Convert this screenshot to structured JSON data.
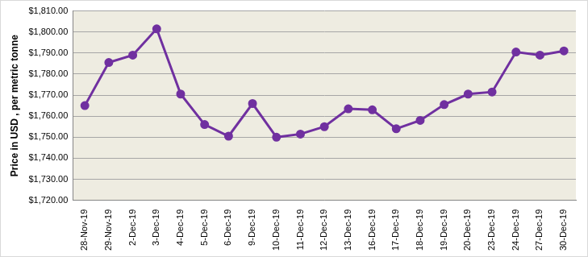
{
  "chart_data": {
    "type": "line",
    "y_label": "Price in USD , per metric tonne",
    "categories": [
      "28-Nov-19",
      "29-Nov-19",
      "2-Dec-19",
      "3-Dec-19",
      "4-Dec-19",
      "5-Dec-19",
      "6-Dec-19",
      "9-Dec-19",
      "10-Dec-19",
      "11-Dec-19",
      "12-Dec-19",
      "13-Dec-19",
      "16-Dec-19",
      "17-Dec-19",
      "18-Dec-19",
      "19-Dec-19",
      "20-Dec-19",
      "23-Dec-19",
      "24-Dec-19",
      "27-Dec-19",
      "30-Dec-19"
    ],
    "values": [
      1765,
      1785.5,
      1789,
      1801.5,
      1770.5,
      1756,
      1750.5,
      1766,
      1750,
      1751.5,
      1755,
      1763.5,
      1763,
      1754,
      1758,
      1765.5,
      1770.5,
      1771.5,
      1790.5,
      1789,
      1791
    ],
    "color": "#7030a0",
    "marker": "circle",
    "line_style": "solid",
    "ylim": [
      1720,
      1810
    ],
    "yticks": [
      {
        "value": 1720,
        "label": "$1,720.00"
      },
      {
        "value": 1730,
        "label": "$1,730.00"
      },
      {
        "value": 1740,
        "label": "$1,740.00"
      },
      {
        "value": 1750,
        "label": "$1,750.00"
      },
      {
        "value": 1760,
        "label": "$1,760.00"
      },
      {
        "value": 1770,
        "label": "$1,770.00"
      },
      {
        "value": 1780,
        "label": "$1,780.00"
      },
      {
        "value": 1790,
        "label": "$1,790.00"
      },
      {
        "value": 1800,
        "label": "$1,800.00"
      },
      {
        "value": 1810,
        "label": "$1,810.00"
      }
    ],
    "grid": true
  }
}
